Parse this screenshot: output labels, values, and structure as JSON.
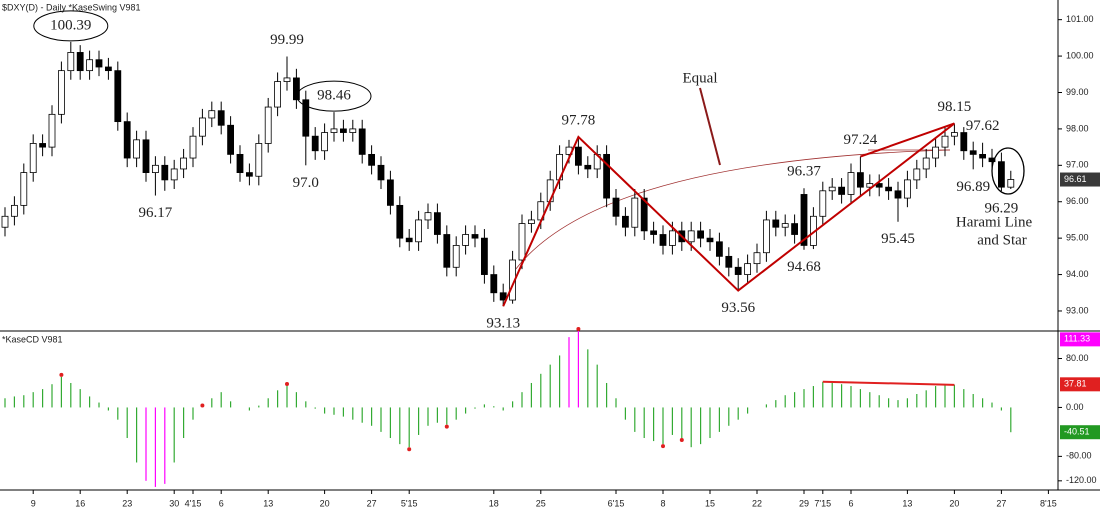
{
  "chart_data": {
    "type": "candlestick",
    "title": "$DXY(D) - Daily  *KaseSwing  V981",
    "categories": [
      null,
      null,
      null,
      "9",
      null,
      null,
      null,
      null,
      "16",
      null,
      null,
      null,
      null,
      "23",
      null,
      null,
      null,
      null,
      "30",
      null,
      "4'15",
      null,
      null,
      "6",
      null,
      null,
      null,
      null,
      "13",
      null,
      null,
      null,
      null,
      null,
      "20",
      null,
      null,
      null,
      null,
      "27",
      null,
      null,
      null,
      "5'15",
      null,
      null,
      null,
      null,
      null,
      null,
      null,
      null,
      "18",
      null,
      null,
      null,
      null,
      "25",
      null,
      null,
      null,
      null,
      null,
      null,
      null,
      "6'15",
      null,
      null,
      null,
      null,
      "8",
      null,
      null,
      null,
      null,
      "15",
      null,
      null,
      null,
      null,
      "22",
      null,
      null,
      null,
      null,
      "29",
      null,
      "7'15",
      null,
      null,
      "6",
      null,
      null,
      null,
      null,
      null,
      "13",
      null,
      null,
      null,
      null,
      "20",
      null,
      null,
      null,
      null,
      "27",
      null,
      null,
      null,
      null,
      "8'15"
    ],
    "open": [
      95.3,
      95.6,
      95.9,
      96.8,
      97.6,
      97.5,
      98.4,
      99.6,
      100.1,
      99.6,
      99.9,
      99.7,
      99.6,
      98.2,
      97.2,
      97.7,
      96.8,
      97.0,
      96.6,
      96.9,
      97.2,
      97.8,
      98.3,
      98.5,
      98.1,
      97.3,
      96.8,
      96.7,
      97.6,
      98.6,
      99.3,
      99.4,
      98.8,
      97.8,
      97.4,
      97.9,
      98.0,
      97.9,
      98.0,
      97.3,
      97.0,
      96.6,
      95.9,
      95.0,
      94.9,
      95.5,
      95.7,
      95.1,
      94.2,
      94.8,
      95.1,
      95.0,
      94.0,
      93.5,
      93.3,
      94.4,
      95.4,
      95.5,
      96.0,
      96.6,
      97.3,
      97.5,
      97.0,
      96.9,
      97.3,
      96.1,
      95.6,
      95.3,
      96.1,
      95.2,
      95.1,
      94.8,
      95.2,
      94.9,
      95.2,
      95.0,
      94.9,
      94.5,
      94.2,
      94.0,
      94.3,
      94.6,
      95.5,
      95.3,
      95.4,
      96.2,
      94.8,
      95.6,
      96.3,
      96.4,
      96.2,
      96.8,
      96.4,
      96.5,
      96.4,
      96.3,
      96.1,
      96.6,
      96.9,
      97.2,
      97.5,
      97.8,
      97.9,
      97.4,
      97.3,
      97.2,
      97.1,
      96.4,
      null,
      null,
      null,
      null
    ],
    "high": [
      95.85,
      96.15,
      97.05,
      97.85,
      97.85,
      98.65,
      99.85,
      100.39,
      100.3,
      100.15,
      100.15,
      99.95,
      99.85,
      98.45,
      97.95,
      97.95,
      97.25,
      97.25,
      97.15,
      97.45,
      98.05,
      98.55,
      98.75,
      98.75,
      98.35,
      97.55,
      97.05,
      97.85,
      98.85,
      99.55,
      99.99,
      99.65,
      99.05,
      98.05,
      98.15,
      98.46,
      98.25,
      98.25,
      98.25,
      97.55,
      97.25,
      96.85,
      96.15,
      95.25,
      95.75,
      95.95,
      95.95,
      95.35,
      95.05,
      95.35,
      95.35,
      95.25,
      94.25,
      93.75,
      94.65,
      95.65,
      95.75,
      96.25,
      96.85,
      97.55,
      97.7,
      97.78,
      97.25,
      97.55,
      97.55,
      96.35,
      95.85,
      96.35,
      96.35,
      95.45,
      95.35,
      95.45,
      95.45,
      95.45,
      95.45,
      95.25,
      95.15,
      94.75,
      94.45,
      94.55,
      94.85,
      95.75,
      95.75,
      95.65,
      95.65,
      96.37,
      95.85,
      96.55,
      96.65,
      96.65,
      97.05,
      97.24,
      96.75,
      96.75,
      96.65,
      96.55,
      96.85,
      97.15,
      97.45,
      97.75,
      98.05,
      98.15,
      98.05,
      97.65,
      97.62,
      97.45,
      97.35,
      96.85,
      null,
      null,
      null,
      null
    ],
    "low": [
      95.05,
      95.35,
      95.65,
      96.55,
      97.25,
      97.25,
      98.15,
      99.35,
      99.35,
      99.35,
      99.45,
      99.35,
      97.95,
      96.95,
      96.95,
      96.55,
      96.17,
      96.3,
      96.35,
      96.65,
      96.95,
      97.55,
      98.05,
      97.85,
      97.05,
      96.55,
      96.45,
      96.45,
      97.35,
      98.35,
      99.05,
      98.55,
      97.0,
      97.15,
      97.15,
      97.65,
      97.65,
      97.65,
      97.05,
      96.75,
      96.35,
      95.65,
      94.75,
      94.65,
      94.65,
      95.25,
      94.85,
      93.95,
      93.95,
      94.55,
      94.75,
      93.75,
      93.25,
      93.13,
      93.2,
      94.15,
      95.15,
      95.25,
      95.75,
      96.35,
      97.05,
      96.75,
      96.65,
      96.65,
      95.85,
      95.35,
      95.05,
      95.05,
      94.95,
      94.85,
      94.55,
      94.55,
      94.65,
      94.65,
      94.75,
      94.65,
      94.25,
      93.95,
      93.56,
      93.75,
      94.05,
      94.35,
      95.05,
      95.05,
      94.85,
      94.68,
      94.7,
      95.35,
      96.05,
      95.95,
      95.95,
      96.15,
      96.15,
      96.15,
      96.05,
      95.45,
      95.85,
      96.35,
      96.65,
      96.95,
      97.25,
      97.55,
      97.15,
      96.89,
      96.95,
      96.85,
      96.29,
      96.35,
      null,
      null,
      null,
      null
    ],
    "close": [
      95.6,
      95.9,
      96.8,
      97.6,
      97.5,
      98.4,
      99.6,
      100.1,
      99.6,
      99.9,
      99.7,
      99.6,
      98.2,
      97.2,
      97.7,
      96.8,
      97.0,
      96.6,
      96.9,
      97.2,
      97.8,
      98.3,
      98.5,
      98.1,
      97.3,
      96.8,
      96.7,
      97.6,
      98.6,
      99.3,
      99.4,
      98.8,
      97.8,
      97.4,
      97.9,
      98.0,
      97.9,
      98.0,
      97.3,
      97.0,
      96.6,
      95.9,
      95.0,
      94.9,
      95.5,
      95.7,
      95.1,
      94.2,
      94.8,
      95.1,
      95.0,
      94.0,
      93.5,
      93.3,
      94.4,
      95.4,
      95.5,
      96.0,
      96.6,
      97.3,
      97.5,
      97.0,
      96.9,
      97.3,
      96.1,
      95.6,
      95.3,
      96.1,
      95.2,
      95.1,
      94.8,
      95.2,
      94.9,
      95.2,
      95.0,
      94.9,
      94.5,
      94.2,
      94.0,
      94.3,
      94.6,
      95.5,
      95.3,
      95.4,
      95.1,
      94.8,
      95.6,
      96.3,
      96.4,
      96.2,
      96.8,
      96.4,
      96.5,
      96.4,
      96.3,
      96.1,
      96.6,
      96.9,
      97.2,
      97.5,
      97.8,
      97.9,
      97.4,
      97.3,
      97.2,
      97.1,
      96.4,
      96.61,
      null,
      null,
      null,
      null
    ],
    "ylim": [
      92.45,
      101.54
    ],
    "yticks": [
      {
        "value": 93,
        "label": "93.00"
      },
      {
        "value": 94,
        "label": "94.00"
      },
      {
        "value": 95,
        "label": "95.00"
      },
      {
        "value": 96,
        "label": "96.00"
      },
      {
        "value": 97,
        "label": "97.00"
      },
      {
        "value": 98,
        "label": "98.00"
      },
      {
        "value": 99,
        "label": "99.00"
      },
      {
        "value": 100,
        "label": "100.00"
      },
      {
        "value": 101,
        "label": "101.00"
      }
    ],
    "last_price": 96.61,
    "pivots": [
      {
        "index": 7,
        "value": 100.39,
        "circled": true
      },
      {
        "index": 16,
        "value": 96.17
      },
      {
        "index": 30,
        "value": 99.99
      },
      {
        "index": 32,
        "value": 97,
        "label": "97.0"
      },
      {
        "index": 35,
        "value": 98.46,
        "circled": true
      },
      {
        "index": 53,
        "value": 93.13
      },
      {
        "index": 61,
        "value": 97.78
      },
      {
        "index": 78,
        "value": 93.56
      },
      {
        "index": 85,
        "value": 96.37
      },
      {
        "index": 85,
        "value": 94.68
      },
      {
        "index": 91,
        "value": 97.24
      },
      {
        "index": 95,
        "value": 95.45
      },
      {
        "index": 101,
        "value": 98.15
      },
      {
        "index": 103,
        "value": 96.89
      },
      {
        "index": 104,
        "value": 97.62
      },
      {
        "index": 106,
        "value": 96.29
      }
    ],
    "trend_lines": [
      [
        5,
        6,
        7,
        12
      ],
      [
        10,
        12
      ]
    ],
    "line_color": "#c00000",
    "annotations": {
      "equal": "Equal",
      "pattern": [
        "Harami Line",
        "and Star"
      ]
    },
    "indicator": {
      "type": "histogram",
      "title": "*KaseCD  V981",
      "values": [
        15,
        18,
        20,
        25,
        30,
        38,
        50,
        40,
        30,
        18,
        8,
        -5,
        -20,
        -50,
        -90,
        -120,
        -130,
        -125,
        -90,
        -50,
        -20,
        0,
        15,
        25,
        10,
        0,
        -5,
        3,
        15,
        28,
        35,
        25,
        10,
        -2,
        -10,
        -12,
        -15,
        -20,
        -25,
        -30,
        -40,
        -50,
        -60,
        -65,
        -45,
        -30,
        -25,
        -28,
        -20,
        -10,
        -2,
        5,
        2,
        -5,
        10,
        25,
        40,
        55,
        70,
        85,
        115,
        125,
        95,
        70,
        40,
        15,
        -20,
        -40,
        -50,
        -55,
        -60,
        -45,
        -50,
        -65,
        -60,
        -50,
        -40,
        -30,
        -20,
        -10,
        0,
        5,
        12,
        20,
        25,
        30,
        35,
        42,
        40,
        38,
        35,
        30,
        25,
        20,
        15,
        12,
        15,
        22,
        28,
        35,
        38,
        37,
        30,
        22,
        15,
        8,
        -5,
        -40.51,
        null,
        null,
        null,
        null
      ],
      "color": "#33aa33",
      "extreme_color": "#ff00ff",
      "ylim": [
        -135,
        125
      ],
      "yticks": [
        {
          "value": 80,
          "label": "80.00"
        },
        {
          "value": 0,
          "label": "0.00"
        },
        {
          "value": -80,
          "label": "-80.00"
        },
        {
          "value": -120,
          "label": "-120.00"
        }
      ],
      "value_boxes": [
        {
          "value": 111.33,
          "color": "#ff00ff"
        },
        {
          "value": 37.81,
          "color": "#e02020"
        },
        {
          "value": -40.51,
          "color": "#229922"
        }
      ],
      "pivot_markers": [
        6,
        21,
        30,
        43,
        47,
        61,
        70,
        72
      ],
      "divergence_line": [
        87,
        101
      ]
    }
  }
}
